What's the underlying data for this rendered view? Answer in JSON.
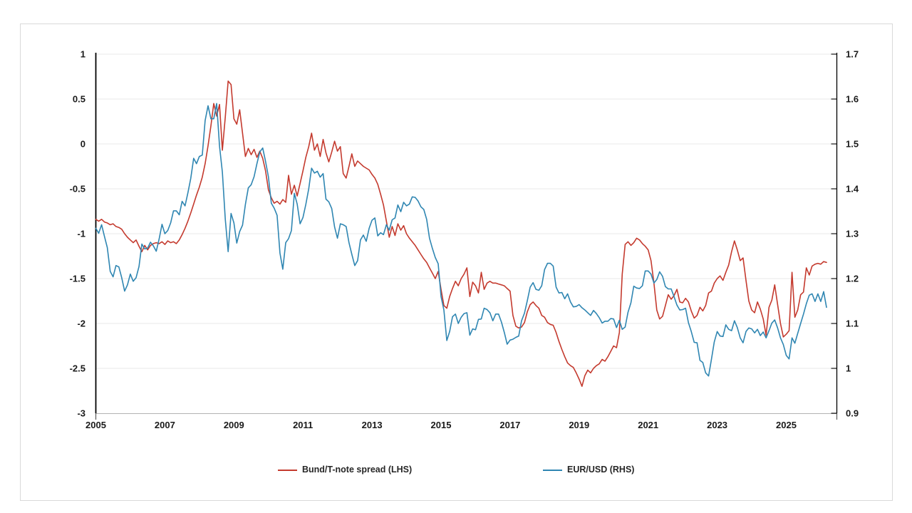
{
  "figure": {
    "background_color": "#ffffff",
    "border_color": "#d9d9d9",
    "gridline_color": "#e8e8e8",
    "axis_line_color": "#000000",
    "bottom_axis_color": "#b3b3b3",
    "tick_label_color": "#1a1a1a",
    "legend_text_color": "#262626"
  },
  "chart_data": {
    "type": "line",
    "title": "",
    "xlabel": "",
    "ylabel_left": "",
    "ylabel_right": "",
    "grid": true,
    "legend_position": "bottom",
    "x_start": "2005-01",
    "x_end": "2026-03",
    "frequency": "monthly",
    "x_tick_labels": [
      "2005",
      "2007",
      "2009",
      "2011",
      "2013",
      "2015",
      "2017",
      "2019",
      "2021",
      "2023",
      "2025"
    ],
    "left_axis": {
      "min": -3,
      "max": 1,
      "step": 0.5,
      "tick_labels": [
        "1",
        "0.5",
        "0",
        "-0.5",
        "-1",
        "-1.5",
        "-2",
        "-2.5",
        "-3"
      ]
    },
    "right_axis": {
      "min": 0.9,
      "max": 1.7,
      "step": 0.1,
      "tick_labels": [
        "1.7",
        "1.6",
        "1.5",
        "1.4",
        "1.3",
        "1.2",
        "1.1",
        "1",
        "0.9"
      ]
    },
    "series": [
      {
        "name": "Bund/T-note spread (LHS)",
        "axis": "left",
        "color": "#c43a2e",
        "values": [
          -0.84,
          -0.86,
          -0.84,
          -0.87,
          -0.88,
          -0.9,
          -0.89,
          -0.92,
          -0.93,
          -0.95,
          -1.0,
          -1.04,
          -1.07,
          -1.1,
          -1.07,
          -1.14,
          -1.2,
          -1.13,
          -1.18,
          -1.13,
          -1.11,
          -1.1,
          -1.11,
          -1.09,
          -1.12,
          -1.08,
          -1.1,
          -1.09,
          -1.11,
          -1.07,
          -1.01,
          -0.94,
          -0.86,
          -0.77,
          -0.67,
          -0.57,
          -0.48,
          -0.37,
          -0.22,
          -0.02,
          0.2,
          0.45,
          0.31,
          0.44,
          -0.07,
          0.3,
          0.7,
          0.66,
          0.28,
          0.22,
          0.38,
          0.12,
          -0.14,
          -0.05,
          -0.12,
          -0.06,
          -0.15,
          -0.08,
          -0.16,
          -0.3,
          -0.51,
          -0.6,
          -0.66,
          -0.64,
          -0.67,
          -0.62,
          -0.65,
          -0.35,
          -0.56,
          -0.46,
          -0.58,
          -0.44,
          -0.3,
          -0.15,
          -0.03,
          0.12,
          -0.07,
          0.0,
          -0.14,
          0.05,
          -0.1,
          -0.2,
          -0.09,
          0.03,
          -0.08,
          -0.03,
          -0.33,
          -0.38,
          -0.25,
          -0.11,
          -0.25,
          -0.19,
          -0.22,
          -0.25,
          -0.27,
          -0.29,
          -0.34,
          -0.38,
          -0.45,
          -0.56,
          -0.68,
          -0.86,
          -1.04,
          -0.92,
          -1.02,
          -0.89,
          -0.96,
          -0.91,
          -1.0,
          -1.05,
          -1.09,
          -1.13,
          -1.18,
          -1.23,
          -1.28,
          -1.32,
          -1.38,
          -1.44,
          -1.5,
          -1.42,
          -1.62,
          -1.8,
          -1.83,
          -1.7,
          -1.61,
          -1.53,
          -1.58,
          -1.5,
          -1.45,
          -1.38,
          -1.7,
          -1.54,
          -1.58,
          -1.66,
          -1.43,
          -1.62,
          -1.55,
          -1.53,
          -1.55,
          -1.55,
          -1.56,
          -1.57,
          -1.58,
          -1.61,
          -1.64,
          -1.91,
          -2.03,
          -2.05,
          -2.04,
          -1.99,
          -1.87,
          -1.79,
          -1.76,
          -1.8,
          -1.83,
          -1.91,
          -1.93,
          -1.99,
          -2.01,
          -2.02,
          -2.1,
          -2.2,
          -2.29,
          -2.37,
          -2.44,
          -2.47,
          -2.49,
          -2.55,
          -2.62,
          -2.7,
          -2.58,
          -2.52,
          -2.55,
          -2.5,
          -2.47,
          -2.45,
          -2.4,
          -2.42,
          -2.37,
          -2.31,
          -2.25,
          -2.27,
          -2.1,
          -1.45,
          -1.12,
          -1.09,
          -1.13,
          -1.1,
          -1.05,
          -1.07,
          -1.11,
          -1.14,
          -1.18,
          -1.3,
          -1.55,
          -1.85,
          -1.95,
          -1.92,
          -1.8,
          -1.68,
          -1.73,
          -1.69,
          -1.62,
          -1.76,
          -1.77,
          -1.72,
          -1.76,
          -1.86,
          -1.94,
          -1.91,
          -1.82,
          -1.86,
          -1.8,
          -1.66,
          -1.64,
          -1.55,
          -1.5,
          -1.47,
          -1.52,
          -1.43,
          -1.35,
          -1.2,
          -1.08,
          -1.18,
          -1.3,
          -1.27,
          -1.52,
          -1.75,
          -1.85,
          -1.88,
          -1.76,
          -1.84,
          -1.95,
          -2.13,
          -1.82,
          -1.74,
          -1.57,
          -1.79,
          -2.0,
          -2.15,
          -2.12,
          -2.08,
          -1.43,
          -1.93,
          -1.85,
          -1.68,
          -1.65,
          -1.38,
          -1.46,
          -1.36,
          -1.34,
          -1.33,
          -1.34,
          -1.31,
          -1.32
        ]
      },
      {
        "name": "EUR/USD (RHS)",
        "axis": "right",
        "color": "#2f86b2",
        "values": [
          1.312,
          1.301,
          1.32,
          1.294,
          1.269,
          1.216,
          1.204,
          1.229,
          1.226,
          1.202,
          1.172,
          1.186,
          1.21,
          1.194,
          1.202,
          1.227,
          1.277,
          1.266,
          1.268,
          1.281,
          1.273,
          1.261,
          1.288,
          1.321,
          1.3,
          1.307,
          1.324,
          1.351,
          1.351,
          1.342,
          1.372,
          1.362,
          1.391,
          1.423,
          1.468,
          1.456,
          1.472,
          1.475,
          1.552,
          1.585,
          1.556,
          1.556,
          1.59,
          1.495,
          1.437,
          1.332,
          1.26,
          1.345,
          1.324,
          1.279,
          1.305,
          1.319,
          1.365,
          1.402,
          1.409,
          1.427,
          1.456,
          1.482,
          1.491,
          1.461,
          1.427,
          1.368,
          1.357,
          1.341,
          1.257,
          1.221,
          1.28,
          1.289,
          1.307,
          1.39,
          1.366,
          1.322,
          1.336,
          1.365,
          1.4,
          1.446,
          1.435,
          1.439,
          1.426,
          1.434,
          1.377,
          1.371,
          1.356,
          1.315,
          1.29,
          1.322,
          1.32,
          1.316,
          1.28,
          1.254,
          1.229,
          1.24,
          1.286,
          1.297,
          1.283,
          1.312,
          1.33,
          1.335,
          1.295,
          1.302,
          1.298,
          1.32,
          1.308,
          1.331,
          1.335,
          1.364,
          1.349,
          1.37,
          1.362,
          1.366,
          1.382,
          1.381,
          1.373,
          1.36,
          1.354,
          1.332,
          1.29,
          1.267,
          1.247,
          1.233,
          1.16,
          1.13,
          1.062,
          1.082,
          1.115,
          1.121,
          1.1,
          1.114,
          1.122,
          1.124,
          1.074,
          1.088,
          1.086,
          1.109,
          1.11,
          1.134,
          1.131,
          1.124,
          1.106,
          1.121,
          1.121,
          1.103,
          1.08,
          1.054,
          1.063,
          1.065,
          1.069,
          1.072,
          1.106,
          1.123,
          1.151,
          1.181,
          1.191,
          1.176,
          1.174,
          1.184,
          1.22,
          1.234,
          1.234,
          1.228,
          1.181,
          1.168,
          1.169,
          1.155,
          1.166,
          1.148,
          1.137,
          1.138,
          1.142,
          1.135,
          1.13,
          1.124,
          1.118,
          1.129,
          1.122,
          1.113,
          1.101,
          1.105,
          1.105,
          1.111,
          1.11,
          1.091,
          1.107,
          1.087,
          1.092,
          1.125,
          1.146,
          1.183,
          1.179,
          1.178,
          1.184,
          1.217,
          1.217,
          1.21,
          1.19,
          1.198,
          1.215,
          1.205,
          1.182,
          1.177,
          1.177,
          1.16,
          1.141,
          1.13,
          1.131,
          1.134,
          1.102,
          1.082,
          1.058,
          1.057,
          1.018,
          1.013,
          0.99,
          0.983,
          1.02,
          1.059,
          1.082,
          1.072,
          1.071,
          1.097,
          1.087,
          1.084,
          1.106,
          1.091,
          1.068,
          1.057,
          1.082,
          1.09,
          1.088,
          1.079,
          1.087,
          1.073,
          1.081,
          1.068,
          1.084,
          1.101,
          1.108,
          1.09,
          1.068,
          1.053,
          1.029,
          1.021,
          1.068,
          1.056,
          1.078,
          1.1,
          1.121,
          1.144,
          1.163,
          1.166,
          1.149,
          1.166,
          1.149,
          1.171,
          1.136
        ]
      }
    ],
    "legend": {
      "bund_label": "Bund/T-note spread (LHS)",
      "eur_label": "EUR/USD (RHS)"
    }
  }
}
